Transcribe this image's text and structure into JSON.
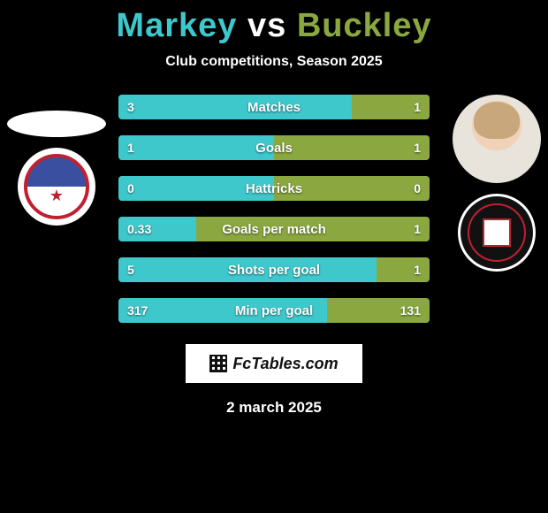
{
  "colors": {
    "player1": "#3fc8cc",
    "player2": "#8aa83f",
    "bar_bg": "#3b3b3b",
    "text": "#ffffff",
    "background": "#000000"
  },
  "header": {
    "player1_name": "Markey",
    "vs": "vs",
    "player2_name": "Buckley",
    "subtitle": "Club competitions, Season 2025"
  },
  "stats": [
    {
      "label": "Matches",
      "left_val": "3",
      "right_val": "1",
      "left_pct": 75,
      "right_pct": 25
    },
    {
      "label": "Goals",
      "left_val": "1",
      "right_val": "1",
      "left_pct": 50,
      "right_pct": 50
    },
    {
      "label": "Hattricks",
      "left_val": "0",
      "right_val": "0",
      "left_pct": 50,
      "right_pct": 50
    },
    {
      "label": "Goals per match",
      "left_val": "0.33",
      "right_val": "1",
      "left_pct": 25,
      "right_pct": 75
    },
    {
      "label": "Shots per goal",
      "left_val": "5",
      "right_val": "1",
      "left_pct": 83,
      "right_pct": 17
    },
    {
      "label": "Min per goal",
      "left_val": "317",
      "right_val": "131",
      "left_pct": 67,
      "right_pct": 33
    }
  ],
  "branding": {
    "label": "FcTables.com"
  },
  "date": "2 march 2025"
}
